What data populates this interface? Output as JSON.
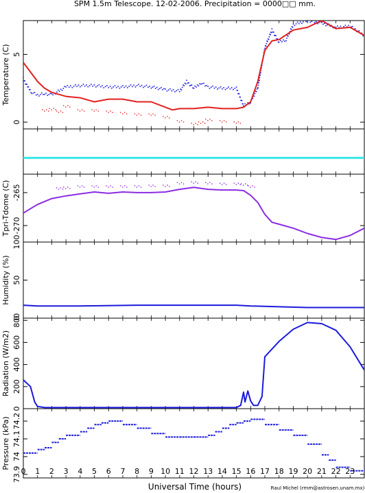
{
  "title": "SPM 1.5m Telescope. 12-02-2006. Precipitation = 0000□□ mm.",
  "xlabel": "Universal Time (hours)",
  "credit": "Raul Michel (rmm@astrosen.unam.mx)",
  "xticks": [
    "0",
    "1",
    "2",
    "3",
    "4",
    "5",
    "6",
    "7",
    "8",
    "9",
    "10",
    "11",
    "12",
    "13",
    "14",
    "15",
    "16",
    "17",
    "18",
    "19",
    "20",
    "21",
    "22",
    "23"
  ],
  "colors": {
    "blue": "#1a1adc",
    "red": "#e21f1f",
    "purple": "#8a2be2",
    "cyan": "#35e6e6",
    "frame": "#000000"
  },
  "chart_data": [
    {
      "type": "line",
      "ylabel": "Temperature (C)",
      "yticks": [
        "0",
        "5"
      ],
      "ylim": [
        -0.5,
        7.5
      ],
      "series": [
        {
          "color": "blue",
          "style": "points",
          "x": [
            0,
            0.3,
            0.6,
            1,
            1.5,
            2,
            3,
            4,
            5,
            6,
            7,
            8,
            9,
            10,
            11,
            11.5,
            12,
            12.5,
            13,
            14,
            15,
            15.5,
            16,
            16.5,
            17,
            17.5,
            18,
            18.5,
            19,
            20,
            21,
            22,
            23,
            24
          ],
          "y": [
            3.2,
            2.6,
            2.2,
            2.0,
            2.1,
            2.0,
            2.6,
            2.7,
            2.7,
            2.6,
            2.6,
            2.7,
            2.6,
            2.4,
            2.3,
            3.0,
            2.5,
            2.9,
            2.6,
            2.5,
            2.5,
            1.2,
            1.5,
            2.5,
            5.5,
            6.8,
            5.9,
            6.1,
            7.2,
            7.5,
            7.3,
            7.0,
            7.1,
            6.4
          ]
        },
        {
          "color": "red",
          "style": "line",
          "x": [
            0,
            0.5,
            1,
            1.5,
            2,
            3,
            4,
            5,
            6,
            7,
            8,
            9,
            10,
            10.5,
            11,
            12,
            13,
            14,
            15,
            15.5,
            16,
            16.5,
            17,
            17.5,
            18,
            19,
            20,
            21,
            22,
            23,
            24
          ],
          "y": [
            4.4,
            3.7,
            3.0,
            2.5,
            2.2,
            1.9,
            1.8,
            1.5,
            1.7,
            1.7,
            1.5,
            1.5,
            1.1,
            0.9,
            1.0,
            1.0,
            1.1,
            1.0,
            1.0,
            1.1,
            1.5,
            3.0,
            5.3,
            6.0,
            6.1,
            6.8,
            7.0,
            7.5,
            6.9,
            7.0,
            6.4
          ]
        },
        {
          "color": "red",
          "style": "scatter",
          "x": [
            1.5,
            2,
            2.5,
            3,
            4,
            5,
            6,
            7,
            8,
            9,
            10,
            11,
            12,
            12.5,
            13,
            14,
            15
          ],
          "y": [
            0.9,
            1.0,
            0.8,
            1.2,
            0.9,
            0.9,
            0.8,
            0.7,
            0.6,
            0.6,
            0.4,
            0.1,
            -0.1,
            0.0,
            0.2,
            0.1,
            0.0
          ]
        }
      ]
    },
    {
      "type": "line",
      "ylabel": "",
      "yticks": [],
      "ylim": [
        0,
        1
      ],
      "series": [
        {
          "color": "cyan",
          "style": "line",
          "x": [
            0,
            24
          ],
          "y": [
            0.36,
            0.36
          ]
        }
      ]
    },
    {
      "type": "line",
      "ylabel": "Tpri-Tdome (C)",
      "yticks": [
        "-265",
        "-270"
      ],
      "ylim": [
        -272.5,
        -262.2
      ],
      "series": [
        {
          "color": "purple",
          "style": "line",
          "x": [
            0,
            1,
            2,
            3,
            4,
            5,
            6,
            7,
            8,
            9,
            10,
            11,
            12,
            13,
            14,
            15,
            15.5,
            16,
            16.5,
            17,
            17.5,
            18,
            19,
            20,
            21,
            22,
            23,
            24
          ],
          "y": [
            -268.1,
            -266.8,
            -265.9,
            -265.5,
            -265.2,
            -264.9,
            -265.1,
            -264.9,
            -265.0,
            -265.0,
            -264.9,
            -264.5,
            -264.2,
            -264.5,
            -264.6,
            -264.6,
            -264.7,
            -265.4,
            -266.5,
            -268.3,
            -269.5,
            -269.8,
            -270.4,
            -271.2,
            -271.8,
            -272.1,
            -271.5,
            -270.4
          ]
        },
        {
          "color": "purple",
          "style": "scatter",
          "x": [
            2.5,
            3,
            4,
            5,
            6,
            7,
            8,
            9,
            10,
            11,
            12,
            13,
            14,
            15,
            15.5,
            16
          ],
          "y": [
            -264.3,
            -264.2,
            -264.0,
            -264.0,
            -264.0,
            -264.0,
            -264.0,
            -263.9,
            -263.9,
            -263.5,
            -263.4,
            -263.5,
            -263.6,
            -263.6,
            -263.7,
            -264.0
          ]
        }
      ]
    },
    {
      "type": "line",
      "ylabel": "Humidity (%)",
      "yticks": [
        "0",
        "50",
        "100"
      ],
      "ylim": [
        0,
        100
      ],
      "series": [
        {
          "color": "blue",
          "style": "line",
          "x": [
            0,
            1,
            2,
            4,
            8,
            12,
            15,
            16,
            18,
            20,
            22,
            24
          ],
          "y": [
            17,
            16,
            16,
            16,
            17,
            17,
            17,
            16,
            15,
            14,
            14,
            14
          ]
        }
      ]
    },
    {
      "type": "line",
      "ylabel": "Radiation (W/m2)",
      "yticks": [
        "0",
        "200",
        "400",
        "600",
        "800"
      ],
      "ylim": [
        0,
        820
      ],
      "series": [
        {
          "color": "blue",
          "style": "line",
          "x": [
            0,
            0.5,
            0.8,
            1,
            1.5,
            3,
            6,
            9,
            12,
            15,
            15.3,
            15.5,
            15.6,
            15.8,
            16,
            16.2,
            16.5,
            16.8,
            17,
            18,
            19,
            20,
            21,
            22,
            23,
            24
          ],
          "y": [
            260,
            200,
            60,
            20,
            10,
            10,
            10,
            10,
            10,
            10,
            30,
            150,
            60,
            160,
            70,
            30,
            30,
            110,
            470,
            610,
            720,
            780,
            770,
            710,
            560,
            350
          ]
        }
      ]
    },
    {
      "type": "scatter",
      "ylabel": "Pressure (kPa)",
      "yticks": [
        "73.9",
        "74",
        "74.1",
        "74.2"
      ],
      "ylim": [
        73.88,
        74.27
      ],
      "series": [
        {
          "color": "blue",
          "style": "steps",
          "x": [
            0,
            1,
            1.5,
            2,
            2.5,
            3,
            4,
            4.5,
            5,
            5.5,
            6,
            7,
            8,
            9,
            10,
            11,
            12,
            13,
            13.5,
            14,
            14.5,
            15,
            15.5,
            16,
            17,
            18,
            19,
            20,
            21,
            21.5,
            22,
            23,
            24
          ],
          "y": [
            74.02,
            74.04,
            74.05,
            74.08,
            74.1,
            74.12,
            74.14,
            74.16,
            74.18,
            74.19,
            74.2,
            74.18,
            74.16,
            74.13,
            74.11,
            74.11,
            74.11,
            74.12,
            74.14,
            74.16,
            74.18,
            74.19,
            74.2,
            74.21,
            74.18,
            74.15,
            74.12,
            74.07,
            74.01,
            73.98,
            73.94,
            73.92,
            73.91
          ]
        }
      ]
    }
  ]
}
